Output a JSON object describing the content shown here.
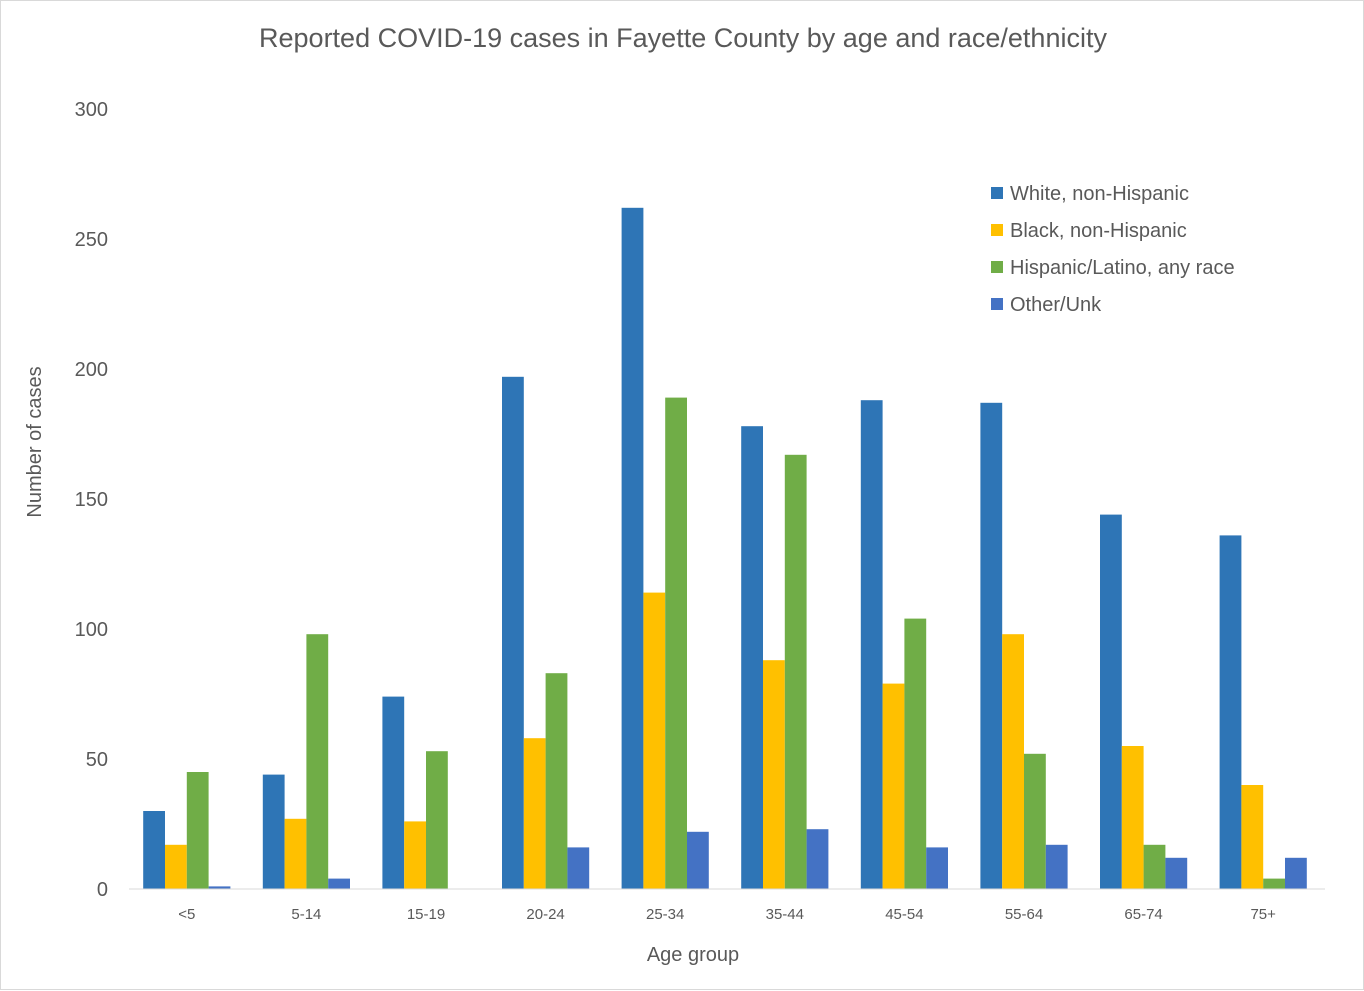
{
  "chart_data": {
    "type": "bar",
    "title": "Reported COVID-19 cases in Fayette County by age and race/ethnicity",
    "xlabel": "Age group",
    "ylabel": "Number of cases",
    "ylim": [
      0,
      300
    ],
    "yticks": [
      0,
      50,
      100,
      150,
      200,
      250,
      300
    ],
    "grid": false,
    "legend_position": "top-right",
    "categories": [
      "<5",
      "5-14",
      "15-19",
      "20-24",
      "25-34",
      "35-44",
      "45-54",
      "55-64",
      "65-74",
      "75+"
    ],
    "series": [
      {
        "name": "White, non-Hispanic",
        "color": "#2E75B6",
        "values": [
          30,
          44,
          74,
          197,
          262,
          178,
          188,
          187,
          144,
          136
        ]
      },
      {
        "name": "Black, non-Hispanic",
        "color": "#FFC000",
        "values": [
          17,
          27,
          26,
          58,
          114,
          88,
          79,
          98,
          55,
          40
        ]
      },
      {
        "name": "Hispanic/Latino, any race",
        "color": "#70AD47",
        "values": [
          45,
          98,
          53,
          83,
          189,
          167,
          104,
          52,
          17,
          4
        ]
      },
      {
        "name": "Other/Unk",
        "color": "#4472C4",
        "values": [
          1,
          4,
          0,
          16,
          22,
          23,
          16,
          17,
          12,
          12
        ]
      }
    ]
  }
}
